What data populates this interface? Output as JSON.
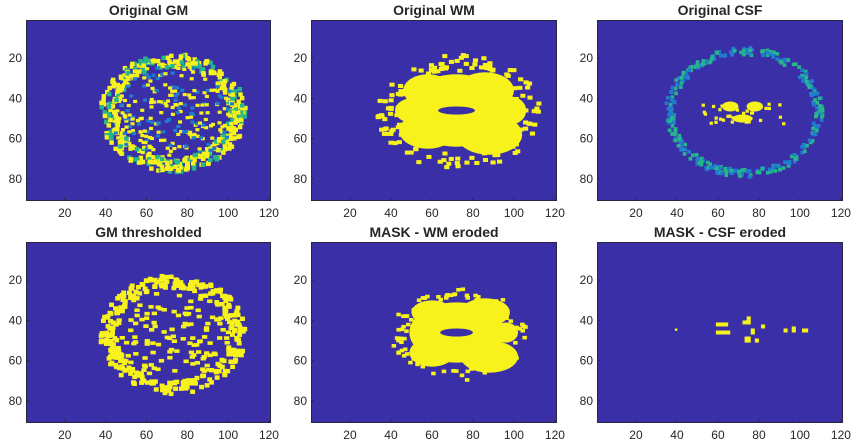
{
  "colors": {
    "background": "#3a2fa6",
    "mask": "#f7f21b",
    "mid": "#27b58c",
    "low": "#1f7dcf"
  },
  "chart_data": [
    {
      "type": "heatmap",
      "title": "Original GM",
      "xlabel": "",
      "ylabel": "",
      "xlim": [
        1,
        121
      ],
      "ylim": [
        1,
        91
      ],
      "xticks": [
        20,
        40,
        60,
        80,
        100,
        120
      ],
      "yticks": [
        20,
        40,
        60,
        80
      ],
      "colormap": "parula",
      "content": "gray matter ring with speckled cortex"
    },
    {
      "type": "heatmap",
      "title": "Original WM",
      "xlabel": "",
      "ylabel": "",
      "xlim": [
        1,
        121
      ],
      "ylim": [
        1,
        91
      ],
      "xticks": [
        20,
        40,
        60,
        80,
        100,
        120
      ],
      "yticks": [
        20,
        40,
        60,
        80
      ],
      "colormap": "parula",
      "content": "white matter branching mass"
    },
    {
      "type": "heatmap",
      "title": "Original CSF",
      "xlabel": "",
      "ylabel": "",
      "xlim": [
        1,
        121
      ],
      "ylim": [
        1,
        91
      ],
      "xticks": [
        20,
        40,
        60,
        80,
        100,
        120
      ],
      "yticks": [
        20,
        40,
        60,
        80
      ],
      "colormap": "parula",
      "content": "faint outer ring and ventricles"
    },
    {
      "type": "heatmap",
      "title": "GM thresholded",
      "xlabel": "",
      "ylabel": "",
      "xlim": [
        1,
        121
      ],
      "ylim": [
        1,
        91
      ],
      "xticks": [
        20,
        40,
        60,
        80,
        100,
        120
      ],
      "yticks": [
        20,
        40,
        60,
        80
      ],
      "colormap": "binary",
      "content": "thresholded gray matter speckle"
    },
    {
      "type": "heatmap",
      "title": "MASK - WM eroded",
      "xlabel": "",
      "ylabel": "",
      "xlim": [
        1,
        121
      ],
      "ylim": [
        1,
        91
      ],
      "xticks": [
        20,
        40,
        60,
        80,
        100,
        120
      ],
      "yticks": [
        20,
        40,
        60,
        80
      ],
      "colormap": "binary",
      "content": "eroded white matter mask"
    },
    {
      "type": "heatmap",
      "title": "MASK - CSF eroded",
      "xlabel": "",
      "ylabel": "",
      "xlim": [
        1,
        121
      ],
      "ylim": [
        1,
        91
      ],
      "xticks": [
        20,
        40,
        60,
        80,
        100,
        120
      ],
      "yticks": [
        20,
        40,
        60,
        80
      ],
      "colormap": "binary",
      "content": "eroded CSF mask, small ventricle fragments"
    }
  ]
}
